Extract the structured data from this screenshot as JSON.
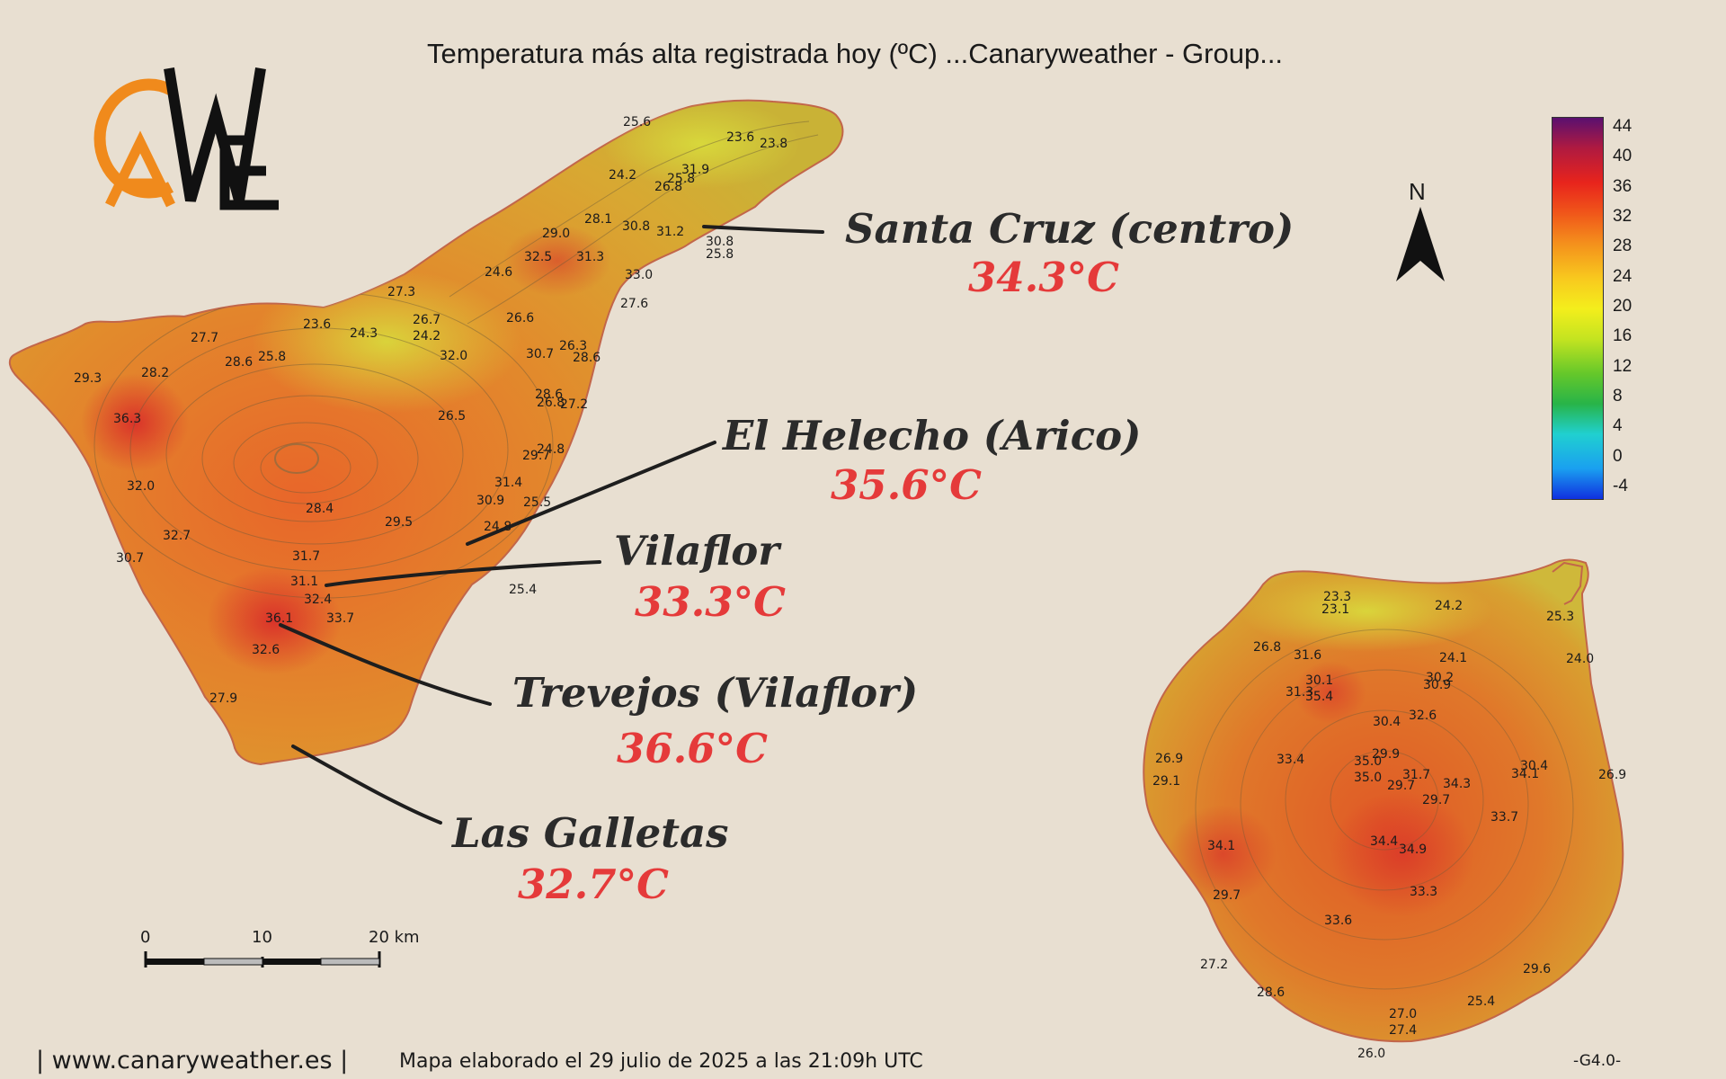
{
  "title": "Temperatura más alta registrada hoy (ºC)     ...Canaryweather - Group...",
  "logo": {
    "text": "CAWE",
    "colors": {
      "orange": "#f08a1c",
      "black": "#111111"
    }
  },
  "north": "N",
  "stations": [
    {
      "name": "Santa Cruz (centro)",
      "temp": "34.3°C"
    },
    {
      "name": "El Helecho (Arico)",
      "temp": "35.6°C"
    },
    {
      "name": "Vilaflor",
      "temp": "33.3°C"
    },
    {
      "name": "Trevejos (Vilaflor)",
      "temp": "36.6°C"
    },
    {
      "name": "Las Galletas",
      "temp": "32.7°C"
    }
  ],
  "legend": {
    "labels": [
      "44",
      "40",
      "36",
      "32",
      "28",
      "24",
      "20",
      "16",
      "12",
      "8",
      "4",
      "0",
      "-4"
    ],
    "colors": [
      "#5a1070",
      "#b01a40",
      "#e8241c",
      "#f0561a",
      "#f4901c",
      "#f8c81e",
      "#f4ee1c",
      "#c4e420",
      "#66c82a",
      "#28b448",
      "#20d0d0",
      "#1aa0f0",
      "#1030e0"
    ]
  },
  "scale": {
    "ticks": [
      "0",
      "10",
      "20 km"
    ]
  },
  "tenerife_values": [
    "25.6",
    "23.6",
    "23.8",
    "31.9",
    "24.2",
    "25.8",
    "26.8",
    "28.1",
    "30.8",
    "31.2",
    "29.0",
    "30.8",
    "25.8",
    "32.5",
    "31.3",
    "33.0",
    "24.6",
    "27.3",
    "27.6",
    "23.6",
    "24.3",
    "26.7",
    "26.6",
    "27.7",
    "28.6",
    "25.8",
    "24.2",
    "32.0",
    "30.7",
    "26.3",
    "28.6",
    "29.3",
    "28.2",
    "28.6",
    "26.8",
    "27.2",
    "36.3",
    "26.5",
    "24.8",
    "32.0",
    "29.7",
    "31.4",
    "28.4",
    "30.9",
    "25.5",
    "29.5",
    "24.8",
    "32.7",
    "30.7",
    "31.7",
    "31.1",
    "32.4",
    "25.4",
    "36.1",
    "33.7",
    "32.6",
    "27.9"
  ],
  "gc_values": [
    "23.3",
    "23.1",
    "24.2",
    "25.3",
    "26.8",
    "31.6",
    "24.1",
    "24.0",
    "30.1",
    "30.2",
    "31.3",
    "35.4",
    "30.9",
    "32.6",
    "30.4",
    "29.9",
    "26.9",
    "33.4",
    "35.0",
    "31.7",
    "30.4",
    "26.9",
    "29.1",
    "35.0",
    "29.7",
    "34.3",
    "34.1",
    "29.7",
    "33.7",
    "34.1",
    "34.4",
    "34.9",
    "29.7",
    "33.3",
    "33.6",
    "27.2",
    "29.6",
    "28.6",
    "25.4",
    "27.0",
    "27.4",
    "26.0"
  ],
  "footer": {
    "site": "| www.canaryweather.es |",
    "date": "Mapa elaborado el 29 julio de 2025 a las 21:09h UTC",
    "code": "-G4.0-"
  }
}
